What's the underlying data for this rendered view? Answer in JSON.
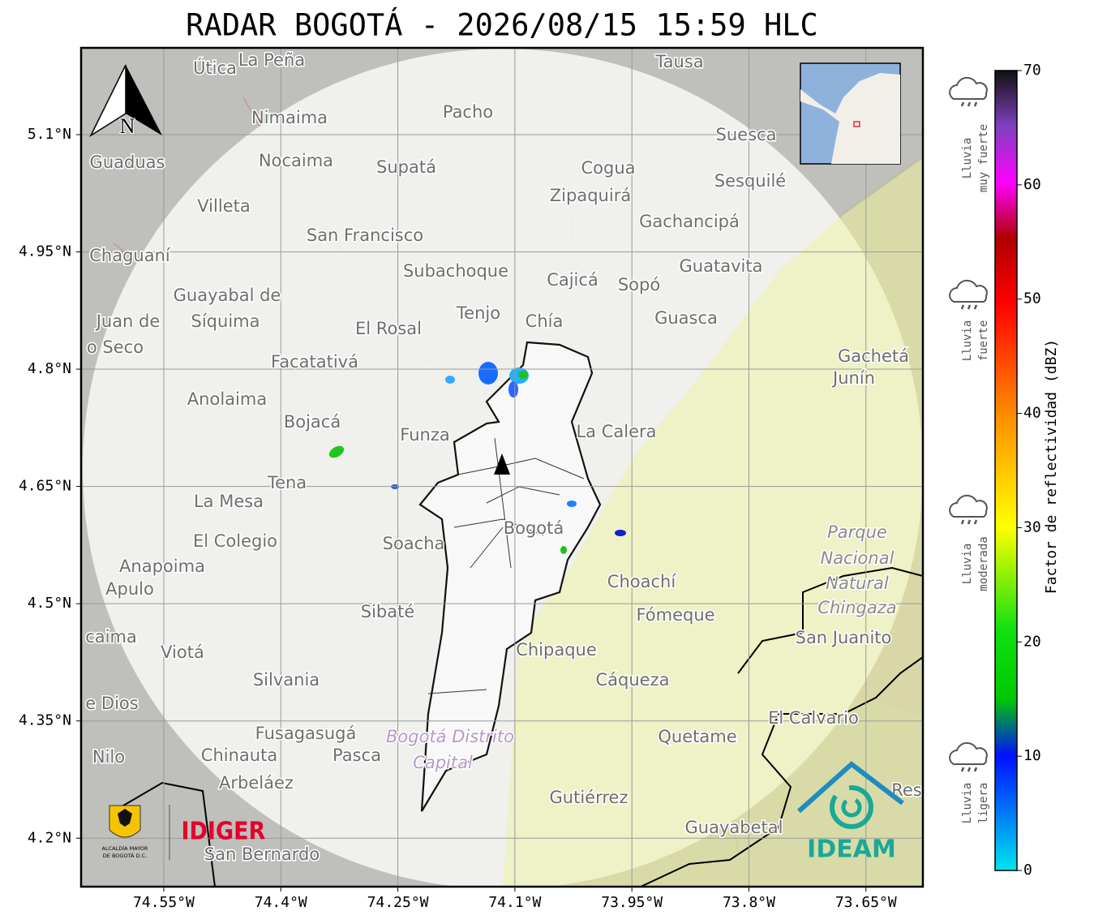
{
  "title": "RADAR BOGOTÁ - 2026/08/15 15:59 HLC",
  "map": {
    "lonlim": [
      -74.656,
      -73.577
    ],
    "latlim": [
      4.138,
      5.211
    ],
    "lon_ticks": [
      {
        "value": -74.55,
        "label": "74.55°W"
      },
      {
        "value": -74.4,
        "label": "74.4°W"
      },
      {
        "value": -74.25,
        "label": "74.25°W"
      },
      {
        "value": -74.1,
        "label": "74.1°W"
      },
      {
        "value": -73.95,
        "label": "73.95°W"
      },
      {
        "value": -73.8,
        "label": "73.8°W"
      },
      {
        "value": -73.65,
        "label": "73.65°W"
      }
    ],
    "lat_ticks": [
      {
        "value": 5.1,
        "label": "5.1°N"
      },
      {
        "value": 4.95,
        "label": "4.95°N"
      },
      {
        "value": 4.8,
        "label": "4.8°N"
      },
      {
        "value": 4.65,
        "label": "4.65°N"
      },
      {
        "value": 4.5,
        "label": "4.5°N"
      },
      {
        "value": 4.35,
        "label": "4.35°N"
      },
      {
        "value": 4.2,
        "label": "4.2°N"
      }
    ],
    "north": "N",
    "places": [
      "Útica",
      "La Peña",
      "Tausa",
      "Pacho",
      "Nimaima",
      "Suesca",
      "Guaduas",
      "Nocaima",
      "Supatá",
      "Cogua",
      "Sesquilé",
      "Zipaquirá",
      "Villeta",
      "Gachancipá",
      "San Francisco",
      "Chaguaní",
      "Guatavita",
      "Subachoque",
      "Cajicá",
      "Sopó",
      "Guayabal de",
      "Síquima",
      "Tenjo",
      "Chía",
      "Guasca",
      "Juan de",
      "o Seco",
      "El Rosal",
      "Facatativá",
      "Gachetá",
      "Junín",
      "Anolaima",
      "Bojacá",
      "Funza",
      "La Calera",
      "Tena",
      "La Mesa",
      "Bogotá",
      "El Colegio",
      "Soacha",
      "Anapoima",
      "Apulo",
      "Choachí",
      "Sibaté",
      "Fómeque",
      "San Juanito",
      "caima",
      "Viotá",
      "Chipaque",
      "Silvania",
      "Cáqueza",
      "e Dios",
      "El Calvario",
      "Fusagasugá",
      "Quetame",
      "Nilo",
      "Chinauta",
      "Pasca",
      "Arbeláez",
      "Gutiérrez",
      "Guayabetal",
      "San Bernardo",
      "Res"
    ],
    "areas": [
      "Parque",
      "Nacional",
      "Natural",
      "Chingaza",
      "Bogotá Distrito",
      "Capital"
    ]
  },
  "colorbar": {
    "label": "Factor de reflectividad (dBZ)",
    "range": [
      0,
      70
    ],
    "ticks": [
      0,
      10,
      20,
      30,
      40,
      50,
      60,
      70
    ],
    "categories": [
      [
        "Lluvia",
        "muy fuerte"
      ],
      [
        "Lluvia",
        "fuerte"
      ],
      [
        "Lluvia",
        "moderada"
      ],
      [
        "Lluvia",
        "ligera"
      ]
    ]
  },
  "logos": {
    "alcaldia": [
      "ALCALDÍA MAYOR",
      "DE BOGOTÁ D.C."
    ],
    "idiger": "IDIGER",
    "ideam": "IDEAM"
  }
}
